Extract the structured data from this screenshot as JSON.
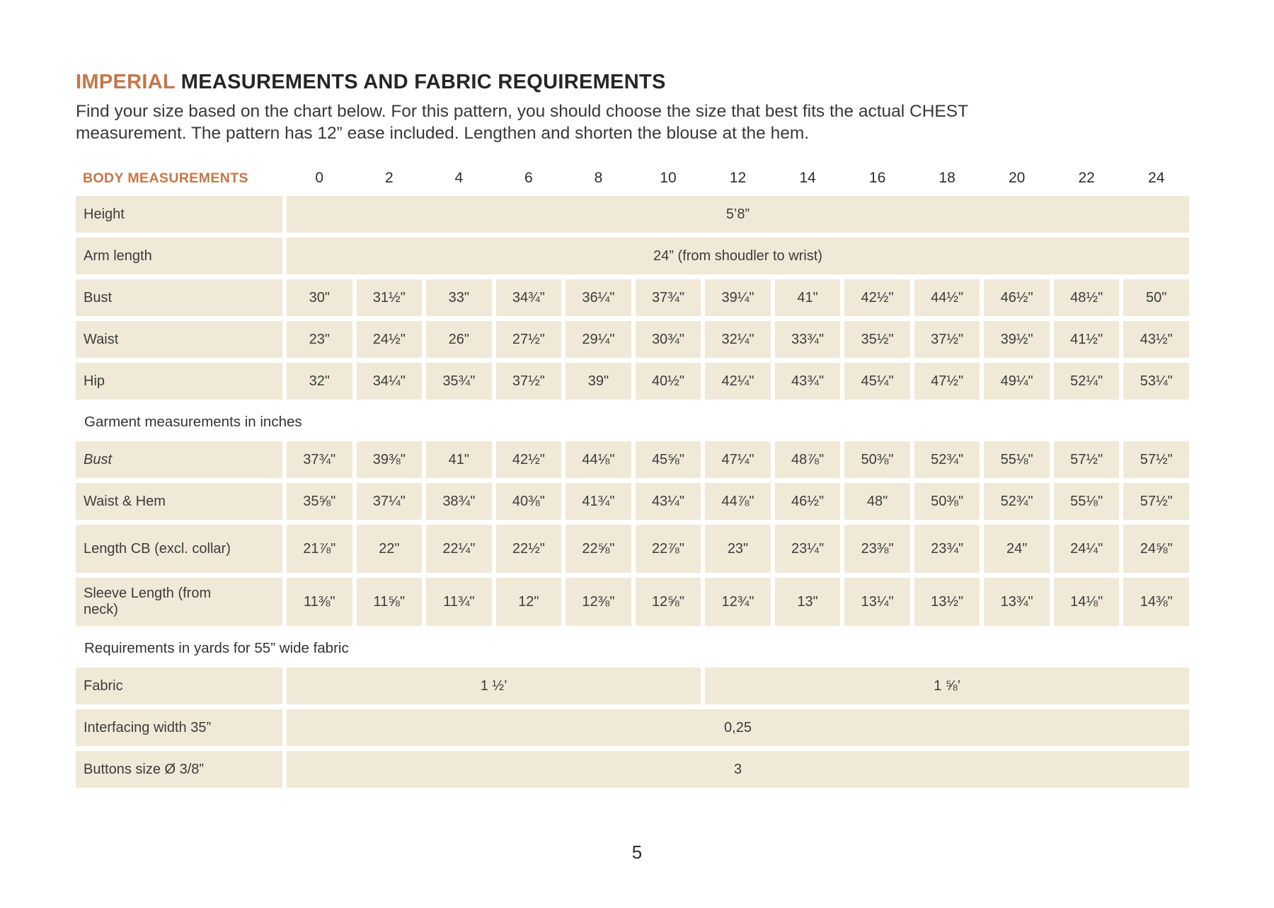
{
  "header": {
    "title_accent": "IMPERIAL",
    "title_rest": " MEASUREMENTS AND FABRIC REQUIREMENTS",
    "subtitle_line1": "Find your size based on the chart below. For this pattern, you should choose the size that best fits the actual CHEST",
    "subtitle_line2": "measurement. The pattern has 12” ease included. Lengthen and shorten the blouse at the hem."
  },
  "table": {
    "header_label": "BODY MEASUREMENTS",
    "sizes": [
      "0",
      "2",
      "4",
      "6",
      "8",
      "10",
      "12",
      "14",
      "16",
      "18",
      "20",
      "22",
      "24"
    ],
    "body_rows": [
      {
        "label": "Height",
        "span_all": "5’8”"
      },
      {
        "label": "Arm length",
        "span_all": "24” (from shoudler to wrist)"
      },
      {
        "label": "Bust",
        "values": [
          "30\"",
          "31½\"",
          "33\"",
          "34¾\"",
          "36¼\"",
          "37¾\"",
          "39¼\"",
          "41\"",
          "42½\"",
          "44½\"",
          "46½\"",
          "48½\"",
          "50\""
        ]
      },
      {
        "label": "Waist",
        "values": [
          "23\"",
          "24½\"",
          "26\"",
          "27½\"",
          "29¼\"",
          "30¾\"",
          "32¼\"",
          "33¾\"",
          "35½\"",
          "37½\"",
          "39½\"",
          "41½\"",
          "43½\""
        ]
      },
      {
        "label": "Hip",
        "values": [
          "32\"",
          "34¼\"",
          "35¾\"",
          "37½\"",
          "39\"",
          "40½\"",
          "42¼\"",
          "43¾\"",
          "45¼\"",
          "47½\"",
          "49¼\"",
          "52¼\"",
          "53¼\""
        ]
      }
    ],
    "garment_section_label": "Garment measurements in inches",
    "garment_rows": [
      {
        "label": "Bust",
        "italic": true,
        "values": [
          "37¾\"",
          "39⅜\"",
          "41\"",
          "42½\"",
          "44⅛\"",
          "45⅝\"",
          "47¼\"",
          "48⅞\"",
          "50⅜\"",
          "52¾\"",
          "55⅛\"",
          "57½\"",
          "57½\""
        ]
      },
      {
        "label": "Waist & Hem",
        "values": [
          "35⅝\"",
          "37¼\"",
          "38¾\"",
          "40⅜\"",
          "41¾\"",
          "43¼\"",
          "44⅞\"",
          "46½\"",
          "48\"",
          "50⅜\"",
          "52¾\"",
          "55⅛\"",
          "57½\""
        ]
      },
      {
        "label": "Length CB (excl. collar)",
        "values": [
          "21⅞\"",
          "22\"",
          "22¼\"",
          "22½\"",
          "22⅝\"",
          "22⅞\"",
          "23\"",
          "23¼\"",
          "23⅜\"",
          "23¾\"",
          "24\"",
          "24¼\"",
          "24⅝\""
        ]
      },
      {
        "label": "Sleeve Length (from neck)",
        "values": [
          "11⅜\"",
          "11⅝\"",
          "11¾\"",
          "12\"",
          "12⅜\"",
          "12⅝\"",
          "12¾\"",
          "13\"",
          "13¼\"",
          "13½\"",
          "13¾\"",
          "14⅛\"",
          "14⅜\""
        ]
      }
    ],
    "requirements_section_label": "Requirements in yards for 55” wide fabric",
    "requirement_rows": [
      {
        "label": "Fabric",
        "spans": [
          {
            "text": "1 ½’",
            "cols": 6
          },
          {
            "text": "1 ⅝’",
            "cols": 7
          }
        ]
      },
      {
        "label": "Interfacing width 35”",
        "span_all": "0,25"
      },
      {
        "label": "Buttons size Ø 3/8”",
        "span_all": "3"
      }
    ]
  },
  "footer": {
    "page_number": "5"
  }
}
